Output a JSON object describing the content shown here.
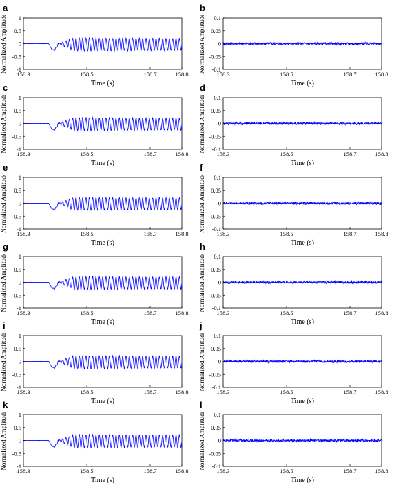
{
  "chart_data": [
    {
      "panel": "a",
      "type": "line",
      "xlabel": "Time (s)",
      "ylabel": "Normalized Amplitude",
      "xlim": [
        158.3,
        158.8
      ],
      "ylim": [
        -1,
        1
      ],
      "xticks": [
        "158.3",
        "158.5",
        "158.7",
        "158.8"
      ],
      "yticks": [
        "1",
        "0.5",
        "0",
        "-0.5",
        "-1"
      ],
      "signal": "noisy",
      "peak": 0.25,
      "onset": 158.38
    },
    {
      "panel": "b",
      "type": "line",
      "xlabel": "Time (s)",
      "ylabel": "Normalized Amplitude",
      "xlim": [
        158.3,
        158.8
      ],
      "ylim": [
        -0.1,
        0.1
      ],
      "xticks": [
        "158.3",
        "158.5",
        "158.7",
        "158.8"
      ],
      "yticks": [
        "0.1",
        "0.05",
        "0",
        "-0.05",
        "-0.1"
      ],
      "signal": "residual",
      "noise_amplitude": 0.004
    },
    {
      "panel": "c",
      "type": "line",
      "xlabel": "Time (s)",
      "ylabel": "Normalized Amplitude",
      "xlim": [
        158.3,
        158.8
      ],
      "ylim": [
        -1,
        1
      ],
      "xticks": [
        "158.3",
        "158.5",
        "158.7",
        "158.8"
      ],
      "yticks": [
        "1",
        "0.5",
        "0",
        "-0.5",
        "-1"
      ],
      "signal": "noisy",
      "peak": 0.25,
      "onset": 158.38
    },
    {
      "panel": "d",
      "type": "line",
      "xlabel": "Time (s)",
      "ylabel": "Normalized Amplitude",
      "xlim": [
        158.3,
        158.8
      ],
      "ylim": [
        -0.1,
        0.1
      ],
      "xticks": [
        "158.3",
        "158.5",
        "158.7",
        "158.8"
      ],
      "yticks": [
        "0.1",
        "0.05",
        "0",
        "-0.05",
        "-0.1"
      ],
      "signal": "residual",
      "noise_amplitude": 0.004
    },
    {
      "panel": "e",
      "type": "line",
      "xlabel": "Time (s)",
      "ylabel": "Normalized Amplitude",
      "xlim": [
        158.3,
        158.8
      ],
      "ylim": [
        -1,
        1
      ],
      "xticks": [
        "158.3",
        "158.5",
        "158.7",
        "158.8"
      ],
      "yticks": [
        "1",
        "0.5",
        "0",
        "-0.5",
        "-1"
      ],
      "signal": "noisy",
      "peak": 0.25,
      "onset": 158.38
    },
    {
      "panel": "f",
      "type": "line",
      "xlabel": "Time (s)",
      "ylabel": "Normalized Amplitude",
      "xlim": [
        158.3,
        158.8
      ],
      "ylim": [
        -0.1,
        0.1
      ],
      "xticks": [
        "158.3",
        "158.5",
        "158.7",
        "158.8"
      ],
      "yticks": [
        "0.1",
        "0.05",
        "0",
        "-0.05",
        "-0.1"
      ],
      "signal": "residual",
      "noise_amplitude": 0.004
    },
    {
      "panel": "g",
      "type": "line",
      "xlabel": "Time (s)",
      "ylabel": "Normalized Amplitude",
      "xlim": [
        158.3,
        158.8
      ],
      "ylim": [
        -1,
        1
      ],
      "xticks": [
        "158.3",
        "158.5",
        "158.7",
        "158.8"
      ],
      "yticks": [
        "1",
        "0.5",
        "0",
        "-0.5",
        "-1"
      ],
      "signal": "noisy",
      "peak": 0.25,
      "onset": 158.38
    },
    {
      "panel": "h",
      "type": "line",
      "xlabel": "Time (s)",
      "ylabel": "Normalized Amplitude",
      "xlim": [
        158.3,
        158.8
      ],
      "ylim": [
        -0.1,
        0.1
      ],
      "xticks": [
        "158.3",
        "158.5",
        "158.7",
        "158.8"
      ],
      "yticks": [
        "0.1",
        "0.05",
        "0",
        "-0.05",
        "-0.1"
      ],
      "signal": "residual",
      "noise_amplitude": 0.004
    },
    {
      "panel": "i",
      "type": "line",
      "xlabel": "Time (s)",
      "ylabel": "Normalized Amplitude",
      "xlim": [
        158.3,
        158.8
      ],
      "ylim": [
        -1,
        1
      ],
      "xticks": [
        "158.3",
        "158.5",
        "158.7",
        "158.8"
      ],
      "yticks": [
        "1",
        "0.5",
        "0",
        "-0.5",
        "-1"
      ],
      "signal": "noisy",
      "peak": 0.25,
      "onset": 158.38
    },
    {
      "panel": "j",
      "type": "line",
      "xlabel": "Time (s)",
      "ylabel": "Normalized Amplitude",
      "xlim": [
        158.3,
        158.8
      ],
      "ylim": [
        -0.1,
        0.1
      ],
      "xticks": [
        "158.3",
        "158.5",
        "158.7",
        "158.8"
      ],
      "yticks": [
        "0.1",
        "0.05",
        "0",
        "-0.05",
        "-0.1"
      ],
      "signal": "residual",
      "noise_amplitude": 0.004
    },
    {
      "panel": "k",
      "type": "line",
      "xlabel": "Time (s)",
      "ylabel": "Normalized Amplitude",
      "xlim": [
        158.3,
        158.8
      ],
      "ylim": [
        -1,
        1
      ],
      "xticks": [
        "158.3",
        "158.5",
        "158.7",
        "158.8"
      ],
      "yticks": [
        "1",
        "0.5",
        "0",
        "-0.5",
        "-1"
      ],
      "signal": "noisy",
      "peak": 0.25,
      "onset": 158.38
    },
    {
      "panel": "l",
      "type": "line",
      "xlabel": "Time (s)",
      "ylabel": "Normalized Amplitude",
      "xlim": [
        158.3,
        158.8
      ],
      "ylim": [
        -0.1,
        0.1
      ],
      "xticks": [
        "158.3",
        "158.5",
        "158.7",
        "158.8"
      ],
      "yticks": [
        "0.1",
        "0.05",
        "0",
        "-0.05",
        "-0.1"
      ],
      "signal": "residual",
      "noise_amplitude": 0.004
    }
  ],
  "colors": {
    "line": "#0000ff",
    "axis": "#000000"
  }
}
